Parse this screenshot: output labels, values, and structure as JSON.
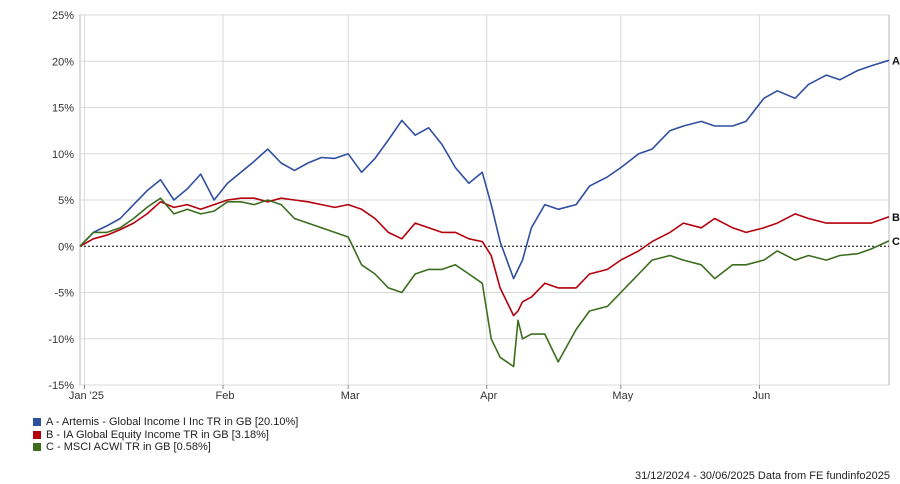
{
  "chart_data": {
    "type": "line",
    "x_start": "2024-12-31",
    "x_end": "2025-06-30",
    "ylim": [
      -15,
      25
    ],
    "yticks": [
      -15,
      -10,
      -5,
      0,
      5,
      10,
      15,
      20,
      25
    ],
    "ytick_labels": [
      "-15%",
      "-10%",
      "-5%",
      "0%",
      "5%",
      "10%",
      "15%",
      "20%",
      "25%"
    ],
    "xticks": [
      {
        "date": "2025-01-01",
        "label": "Jan '25"
      },
      {
        "date": "2025-02-01",
        "label": "Feb"
      },
      {
        "date": "2025-03-01",
        "label": "Mar"
      },
      {
        "date": "2025-04-01",
        "label": "Apr"
      },
      {
        "date": "2025-05-01",
        "label": "May"
      },
      {
        "date": "2025-06-01",
        "label": "Jun"
      }
    ],
    "grid": true,
    "zero_line": "dashed",
    "series": [
      {
        "name": "A - Artemis - Global Income I Inc TR in GB [20.10%]",
        "end_label": "A",
        "color": "#2f4f9f",
        "x": [
          "2024-12-31",
          "2025-01-03",
          "2025-01-06",
          "2025-01-09",
          "2025-01-12",
          "2025-01-15",
          "2025-01-18",
          "2025-01-21",
          "2025-01-24",
          "2025-01-27",
          "2025-01-30",
          "2025-02-02",
          "2025-02-05",
          "2025-02-08",
          "2025-02-11",
          "2025-02-14",
          "2025-02-17",
          "2025-02-20",
          "2025-02-23",
          "2025-02-26",
          "2025-03-01",
          "2025-03-04",
          "2025-03-07",
          "2025-03-10",
          "2025-03-13",
          "2025-03-16",
          "2025-03-19",
          "2025-03-22",
          "2025-03-25",
          "2025-03-28",
          "2025-03-31",
          "2025-04-02",
          "2025-04-04",
          "2025-04-07",
          "2025-04-08",
          "2025-04-09",
          "2025-04-11",
          "2025-04-14",
          "2025-04-17",
          "2025-04-21",
          "2025-04-24",
          "2025-04-28",
          "2025-05-01",
          "2025-05-05",
          "2025-05-08",
          "2025-05-12",
          "2025-05-15",
          "2025-05-19",
          "2025-05-22",
          "2025-05-26",
          "2025-05-29",
          "2025-06-02",
          "2025-06-05",
          "2025-06-09",
          "2025-06-12",
          "2025-06-16",
          "2025-06-19",
          "2025-06-23",
          "2025-06-26",
          "2025-06-30"
        ],
        "values": [
          0,
          1.5,
          2.2,
          3.0,
          4.5,
          6.0,
          7.2,
          5.0,
          6.2,
          7.8,
          5.0,
          6.8,
          8.0,
          9.2,
          10.5,
          9.0,
          8.2,
          9.0,
          9.6,
          9.5,
          10.0,
          8.0,
          9.5,
          11.5,
          13.6,
          12.0,
          12.8,
          11.0,
          8.5,
          6.8,
          8.0,
          4.5,
          0.5,
          -3.5,
          -2.5,
          -1.5,
          2.0,
          4.5,
          4.0,
          4.5,
          6.5,
          7.5,
          8.5,
          10.0,
          10.5,
          12.5,
          13.0,
          13.5,
          13.0,
          13.0,
          13.5,
          16.0,
          16.8,
          16.0,
          17.5,
          18.5,
          18.0,
          19.0,
          19.5,
          20.1
        ]
      },
      {
        "name": "B - IA Global Equity Income TR in GB [3.18%]",
        "end_label": "B",
        "color": "#b3000c",
        "x": [
          "2024-12-31",
          "2025-01-03",
          "2025-01-06",
          "2025-01-09",
          "2025-01-12",
          "2025-01-15",
          "2025-01-18",
          "2025-01-21",
          "2025-01-24",
          "2025-01-27",
          "2025-01-30",
          "2025-02-02",
          "2025-02-05",
          "2025-02-08",
          "2025-02-11",
          "2025-02-14",
          "2025-02-17",
          "2025-02-20",
          "2025-02-23",
          "2025-02-26",
          "2025-03-01",
          "2025-03-04",
          "2025-03-07",
          "2025-03-10",
          "2025-03-13",
          "2025-03-16",
          "2025-03-19",
          "2025-03-22",
          "2025-03-25",
          "2025-03-28",
          "2025-03-31",
          "2025-04-02",
          "2025-04-04",
          "2025-04-07",
          "2025-04-08",
          "2025-04-09",
          "2025-04-11",
          "2025-04-14",
          "2025-04-17",
          "2025-04-21",
          "2025-04-24",
          "2025-04-28",
          "2025-05-01",
          "2025-05-05",
          "2025-05-08",
          "2025-05-12",
          "2025-05-15",
          "2025-05-19",
          "2025-05-22",
          "2025-05-26",
          "2025-05-29",
          "2025-06-02",
          "2025-06-05",
          "2025-06-09",
          "2025-06-12",
          "2025-06-16",
          "2025-06-19",
          "2025-06-23",
          "2025-06-26",
          "2025-06-30"
        ],
        "values": [
          0,
          0.8,
          1.2,
          1.8,
          2.5,
          3.5,
          4.8,
          4.2,
          4.5,
          4.0,
          4.5,
          5.0,
          5.2,
          5.2,
          4.8,
          5.2,
          5.0,
          4.8,
          4.5,
          4.2,
          4.5,
          4.0,
          3.0,
          1.5,
          0.8,
          2.5,
          2.0,
          1.5,
          1.5,
          0.8,
          0.5,
          -1.0,
          -4.5,
          -7.5,
          -7.0,
          -6.0,
          -5.5,
          -4.0,
          -4.5,
          -4.5,
          -3.0,
          -2.5,
          -1.5,
          -0.5,
          0.5,
          1.5,
          2.5,
          2.0,
          3.0,
          2.0,
          1.5,
          2.0,
          2.5,
          3.5,
          3.0,
          2.5,
          2.5,
          2.5,
          2.5,
          3.18
        ]
      },
      {
        "name": "C - MSCI ACWI TR in GB [0.58%]",
        "end_label": "C",
        "color": "#3c6e1e",
        "x": [
          "2024-12-31",
          "2025-01-03",
          "2025-01-06",
          "2025-01-09",
          "2025-01-12",
          "2025-01-15",
          "2025-01-18",
          "2025-01-21",
          "2025-01-24",
          "2025-01-27",
          "2025-01-30",
          "2025-02-02",
          "2025-02-05",
          "2025-02-08",
          "2025-02-11",
          "2025-02-14",
          "2025-02-17",
          "2025-02-20",
          "2025-02-23",
          "2025-02-26",
          "2025-03-01",
          "2025-03-04",
          "2025-03-07",
          "2025-03-10",
          "2025-03-13",
          "2025-03-16",
          "2025-03-19",
          "2025-03-22",
          "2025-03-25",
          "2025-03-28",
          "2025-03-31",
          "2025-04-02",
          "2025-04-04",
          "2025-04-07",
          "2025-04-08",
          "2025-04-09",
          "2025-04-11",
          "2025-04-14",
          "2025-04-17",
          "2025-04-21",
          "2025-04-24",
          "2025-04-28",
          "2025-05-01",
          "2025-05-05",
          "2025-05-08",
          "2025-05-12",
          "2025-05-15",
          "2025-05-19",
          "2025-05-22",
          "2025-05-26",
          "2025-05-29",
          "2025-06-02",
          "2025-06-05",
          "2025-06-09",
          "2025-06-12",
          "2025-06-16",
          "2025-06-19",
          "2025-06-23",
          "2025-06-26",
          "2025-06-30"
        ],
        "values": [
          0,
          1.5,
          1.5,
          2.0,
          3.0,
          4.2,
          5.2,
          3.5,
          4.0,
          3.5,
          3.8,
          4.8,
          4.8,
          4.5,
          5.0,
          4.5,
          3.0,
          2.5,
          2.0,
          1.5,
          1.0,
          -2.0,
          -3.0,
          -4.5,
          -5.0,
          -3.0,
          -2.5,
          -2.5,
          -2.0,
          -3.0,
          -4.0,
          -10.0,
          -12.0,
          -13.0,
          -8.0,
          -10.0,
          -9.5,
          -9.5,
          -12.5,
          -9.0,
          -7.0,
          -6.5,
          -5.0,
          -3.0,
          -1.5,
          -1.0,
          -1.5,
          -2.0,
          -3.5,
          -2.0,
          -2.0,
          -1.5,
          -0.5,
          -1.5,
          -1.0,
          -1.5,
          -1.0,
          -0.8,
          -0.3,
          0.58
        ]
      }
    ]
  },
  "footer_text": "31/12/2024 - 30/06/2025 Data from FE fundinfo2025"
}
